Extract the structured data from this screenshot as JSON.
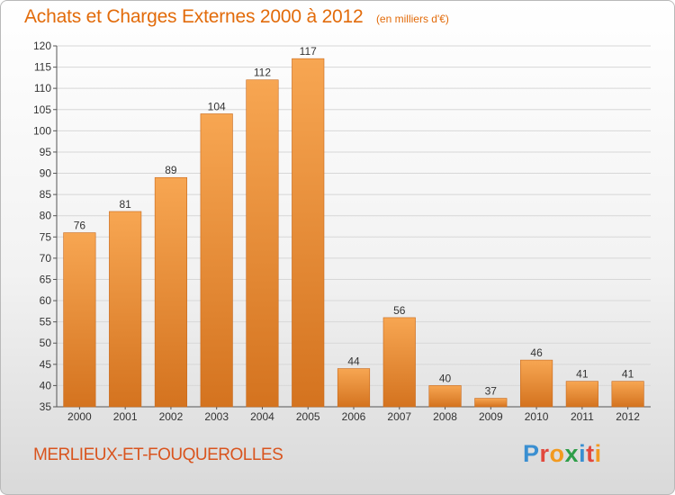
{
  "title": "Achats et Charges Externes 2000 à 2012",
  "unit_label": "(en milliers d'€)",
  "commune": "MERLIEUX-ET-FOUQUEROLLES",
  "logo": {
    "text": "Proxiti",
    "letters": [
      {
        "ch": "P",
        "color": "#3a8fd1"
      },
      {
        "ch": "r",
        "color": "#e2483d"
      },
      {
        "ch": "o",
        "color": "#f29a1f"
      },
      {
        "ch": "x",
        "color": "#2e9e48"
      },
      {
        "ch": "i",
        "color": "#3a8fd1"
      },
      {
        "ch": "t",
        "color": "#e2483d"
      },
      {
        "ch": "i",
        "color": "#f29a1f"
      }
    ]
  },
  "colors": {
    "bar_light": "#f7a652",
    "bar_dark": "#d4731f",
    "title": "#e26b0a",
    "grid": "#d7d7d7"
  },
  "chart_data": {
    "type": "bar",
    "categories": [
      "2000",
      "2001",
      "2002",
      "2003",
      "2004",
      "2005",
      "2006",
      "2007",
      "2008",
      "2009",
      "2010",
      "2011",
      "2012"
    ],
    "values": [
      76,
      81,
      89,
      104,
      112,
      117,
      44,
      56,
      40,
      37,
      46,
      41,
      41
    ],
    "ylim": [
      35,
      120
    ],
    "yticks": [
      35,
      40,
      45,
      50,
      55,
      60,
      65,
      70,
      75,
      80,
      85,
      90,
      95,
      100,
      105,
      110,
      115,
      120
    ],
    "grid": true,
    "data_labels": true
  }
}
